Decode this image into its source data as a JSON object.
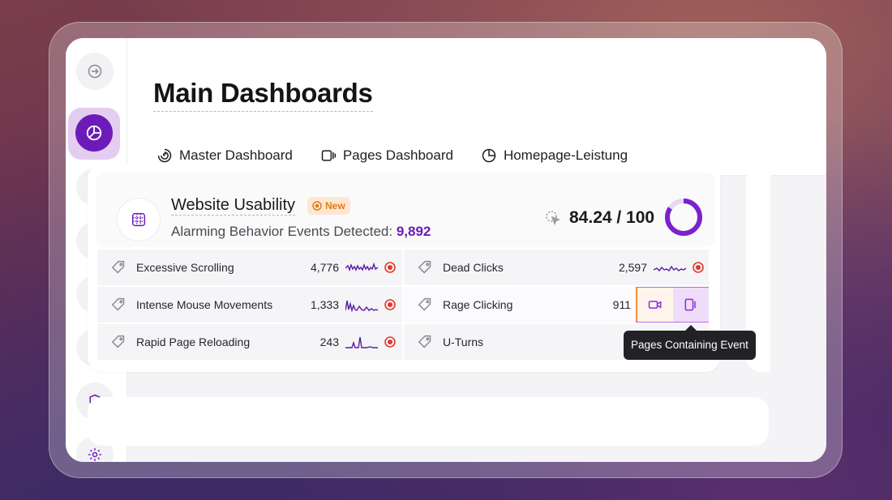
{
  "page": {
    "title": "Main Dashboards"
  },
  "tabs": [
    {
      "label": "Master Dashboard",
      "icon": "spiral-icon",
      "active": true
    },
    {
      "label": "Pages Dashboard",
      "icon": "pages-icon",
      "active": false
    },
    {
      "label": "Homepage-Leistung",
      "icon": "pie-icon",
      "active": false
    }
  ],
  "sidebar": {
    "items": [
      {
        "icon": "login-arrow-icon"
      },
      {
        "icon": "pie-chart-icon",
        "active": true
      },
      {
        "icon": "shopping-bag-icon"
      },
      {
        "icon": "spiral-icon"
      },
      {
        "icon": "focus-eye-icon"
      },
      {
        "icon": "feedback-chat-icon"
      },
      {
        "icon": "shield-check-icon"
      },
      {
        "icon": "gear-icon"
      }
    ]
  },
  "card": {
    "title": "Website Usability",
    "badge": "New",
    "subtitle_label": "Alarming Behavior Events Detected:",
    "subtitle_count": "9,892",
    "score": "84.24 / 100",
    "score_fraction": 0.8424,
    "rows": [
      {
        "label": "Excessive Scrolling",
        "value": "4,776"
      },
      {
        "label": "Dead Clicks",
        "value": "2,597"
      },
      {
        "label": "Intense Mouse Movements",
        "value": "1,333"
      },
      {
        "label": "Rage Clicking",
        "value": "911"
      },
      {
        "label": "Rapid Page Reloading",
        "value": "243"
      },
      {
        "label": "U-Turns",
        "value": ""
      }
    ]
  },
  "tooltip": {
    "text": "Pages Containing Event"
  },
  "colors": {
    "accent": "#6d1bb8",
    "alert": "#e5372b",
    "badge": "#e27b14"
  }
}
